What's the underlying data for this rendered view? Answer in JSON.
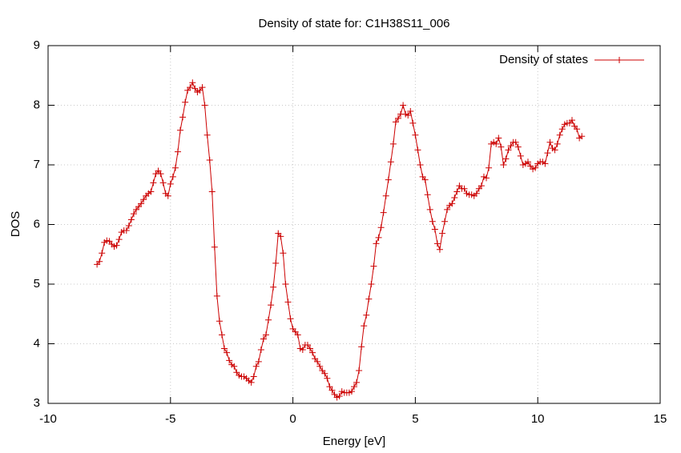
{
  "chart_data": {
    "type": "line",
    "title": "Density of state for: C1H38S11_006",
    "x_label": "Energy [eV]",
    "y_label": "DOS",
    "xlim": [
      -10,
      15
    ],
    "xticks": [
      -10,
      -5,
      0,
      5,
      10,
      15
    ],
    "ylim": [
      3,
      9
    ],
    "yticks": [
      3,
      4,
      5,
      6,
      7,
      8,
      9
    ],
    "grid": true,
    "legend": "top-right",
    "x": [
      -8,
      -7.9,
      -7.8,
      -7.7,
      -7.6,
      -7.5,
      -7.4,
      -7.3,
      -7.2,
      -7.1,
      -7,
      -6.9,
      -6.8,
      -6.7,
      -6.6,
      -6.5,
      -6.4,
      -6.3,
      -6.2,
      -6.1,
      -6,
      -5.9,
      -5.8,
      -5.7,
      -5.6,
      -5.5,
      -5.4,
      -5.3,
      -5.2,
      -5.1,
      -5,
      -4.9,
      -4.8,
      -4.7,
      -4.6,
      -4.5,
      -4.4,
      -4.3,
      -4.2,
      -4.1,
      -4,
      -3.9,
      -3.8,
      -3.7,
      -3.6,
      -3.5,
      -3.4,
      -3.3,
      -3.2,
      -3.1,
      -3,
      -2.9,
      -2.8,
      -2.7,
      -2.6,
      -2.5,
      -2.4,
      -2.3,
      -2.2,
      -2.1,
      -2,
      -1.9,
      -1.8,
      -1.7,
      -1.6,
      -1.5,
      -1.4,
      -1.3,
      -1.2,
      -1.1,
      -1,
      -0.9,
      -0.8,
      -0.7,
      -0.6,
      -0.5,
      -0.4,
      -0.3,
      -0.2,
      -0.1,
      0,
      0.1,
      0.2,
      0.3,
      0.4,
      0.5,
      0.6,
      0.7,
      0.8,
      0.9,
      1,
      1.1,
      1.2,
      1.3,
      1.4,
      1.5,
      1.6,
      1.7,
      1.8,
      1.9,
      2,
      2.1,
      2.2,
      2.3,
      2.4,
      2.5,
      2.6,
      2.7,
      2.8,
      2.9,
      3,
      3.1,
      3.2,
      3.3,
      3.4,
      3.5,
      3.6,
      3.7,
      3.8,
      3.9,
      4,
      4.1,
      4.2,
      4.3,
      4.4,
      4.5,
      4.6,
      4.7,
      4.8,
      4.9,
      5,
      5.1,
      5.2,
      5.3,
      5.4,
      5.5,
      5.6,
      5.7,
      5.8,
      5.9,
      6,
      6.1,
      6.2,
      6.3,
      6.4,
      6.5,
      6.6,
      6.7,
      6.8,
      6.9,
      7,
      7.1,
      7.2,
      7.3,
      7.4,
      7.5,
      7.6,
      7.7,
      7.8,
      7.9,
      8,
      8.1,
      8.2,
      8.3,
      8.4,
      8.5,
      8.6,
      8.7,
      8.8,
      8.9,
      9,
      9.1,
      9.2,
      9.3,
      9.4,
      9.5,
      9.6,
      9.7,
      9.8,
      9.9,
      10,
      10.1,
      10.2,
      10.3,
      10.4,
      10.5,
      10.6,
      10.7,
      10.8,
      10.9,
      11,
      11.1,
      11.2,
      11.3,
      11.4,
      11.5,
      11.6,
      11.7,
      11.8
    ],
    "series": [
      {
        "name": "Density of states",
        "color": "#cc0000",
        "values": [
          5.33,
          5.38,
          5.52,
          5.7,
          5.73,
          5.72,
          5.67,
          5.63,
          5.65,
          5.75,
          5.87,
          5.9,
          5.9,
          5.98,
          6.08,
          6.18,
          6.25,
          6.3,
          6.35,
          6.42,
          6.48,
          6.52,
          6.55,
          6.7,
          6.85,
          6.9,
          6.85,
          6.7,
          6.52,
          6.48,
          6.68,
          6.8,
          6.95,
          7.22,
          7.58,
          7.8,
          8.05,
          8.25,
          8.3,
          8.38,
          8.28,
          8.22,
          8.25,
          8.3,
          8,
          7.5,
          7.08,
          6.55,
          5.62,
          4.8,
          4.38,
          4.15,
          3.92,
          3.85,
          3.72,
          3.65,
          3.62,
          3.52,
          3.47,
          3.45,
          3.45,
          3.42,
          3.38,
          3.35,
          3.45,
          3.62,
          3.7,
          3.9,
          4.08,
          4.15,
          4.4,
          4.65,
          4.95,
          5.35,
          5.85,
          5.8,
          5.52,
          5,
          4.7,
          4.42,
          4.25,
          4.2,
          4.15,
          3.92,
          3.9,
          3.98,
          3.98,
          3.92,
          3.85,
          3.75,
          3.7,
          3.62,
          3.55,
          3.5,
          3.42,
          3.28,
          3.22,
          3.15,
          3.1,
          3.12,
          3.2,
          3.18,
          3.18,
          3.18,
          3.2,
          3.28,
          3.35,
          3.55,
          3.95,
          4.3,
          4.48,
          4.75,
          5,
          5.3,
          5.68,
          5.78,
          5.95,
          6.2,
          6.48,
          6.75,
          7.05,
          7.35,
          7.72,
          7.78,
          7.85,
          8,
          7.85,
          7.83,
          7.9,
          7.7,
          7.5,
          7.25,
          7,
          6.8,
          6.75,
          6.5,
          6.25,
          6.05,
          5.92,
          5.68,
          5.58,
          5.85,
          6.05,
          6.25,
          6.32,
          6.35,
          6.45,
          6.55,
          6.65,
          6.6,
          6.6,
          6.52,
          6.5,
          6.5,
          6.48,
          6.52,
          6.6,
          6.65,
          6.8,
          6.78,
          6.95,
          7.35,
          7.38,
          7.35,
          7.45,
          7.3,
          7,
          7.1,
          7.25,
          7.32,
          7.38,
          7.38,
          7.3,
          7.15,
          7,
          7.02,
          7.05,
          6.98,
          6.93,
          6.95,
          7.02,
          7.05,
          7.05,
          7.02,
          7.2,
          7.38,
          7.28,
          7.25,
          7.35,
          7.5,
          7.6,
          7.68,
          7.7,
          7.7,
          7.75,
          7.65,
          7.6,
          7.45,
          7.48
        ]
      }
    ]
  }
}
